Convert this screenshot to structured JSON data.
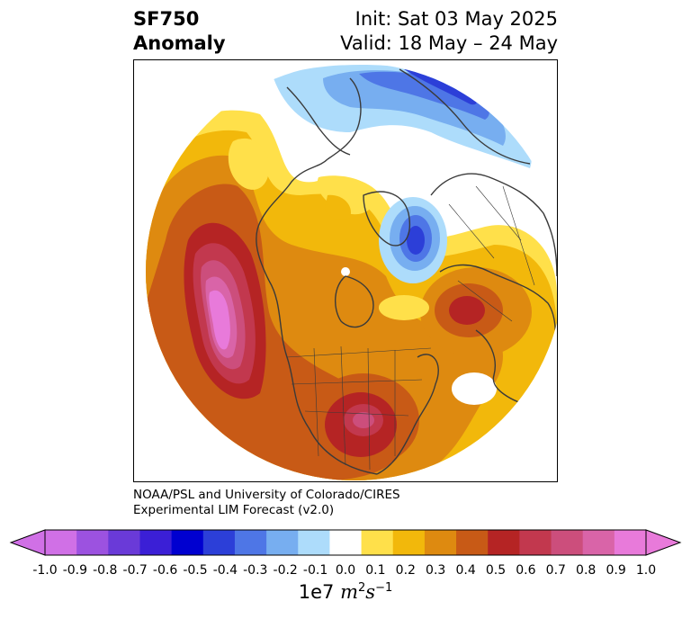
{
  "title": {
    "left_line1": "SF750",
    "left_line2": "Anomaly",
    "right_line1": "Init: Sat 03 May 2025",
    "right_line2": "Valid: 18 May – 24 May"
  },
  "credit": {
    "line1": "NOAA/PSL and University of Colorado/CIRES",
    "line2": "Experimental LIM Forecast (v2.0)"
  },
  "colorbar": {
    "ticks": [
      "-1.0",
      "-0.9",
      "-0.8",
      "-0.7",
      "-0.6",
      "-0.5",
      "-0.4",
      "-0.3",
      "-0.2",
      "-0.1",
      "0.0",
      "0.1",
      "0.2",
      "0.3",
      "0.4",
      "0.5",
      "0.6",
      "0.7",
      "0.8",
      "0.9",
      "1.0"
    ],
    "colors": [
      "#d070e6",
      "#9c52e0",
      "#6a3ad8",
      "#3b1fd6",
      "#0000d0",
      "#2c3fd8",
      "#4e76e6",
      "#77aef0",
      "#addcfb",
      "#ffffff",
      "#ffe04a",
      "#f2b80b",
      "#de8a10",
      "#c85a16",
      "#b52424",
      "#c2384e",
      "#cc4e7c",
      "#d964a8",
      "#e87ada"
    ],
    "unit_prefix": "1e7 ",
    "unit_m": "m",
    "unit_m_exp": "2",
    "unit_s": "s",
    "unit_s_exp": "−1"
  },
  "map_colors": {
    "neg_light": "#addcfb",
    "neg_2": "#77aef0",
    "neg_3": "#4e76e6",
    "neg_4": "#2c3fd8",
    "pos_1": "#ffe04a",
    "pos_2": "#f2b80b",
    "pos_3": "#de8a10",
    "pos_4": "#c85a16",
    "pos_5": "#b52424",
    "pos_6": "#c2384e",
    "pos_7": "#cc4e7c",
    "pos_8": "#d964a8",
    "pos_9": "#e87ada",
    "coast": "#3a3a3a"
  }
}
